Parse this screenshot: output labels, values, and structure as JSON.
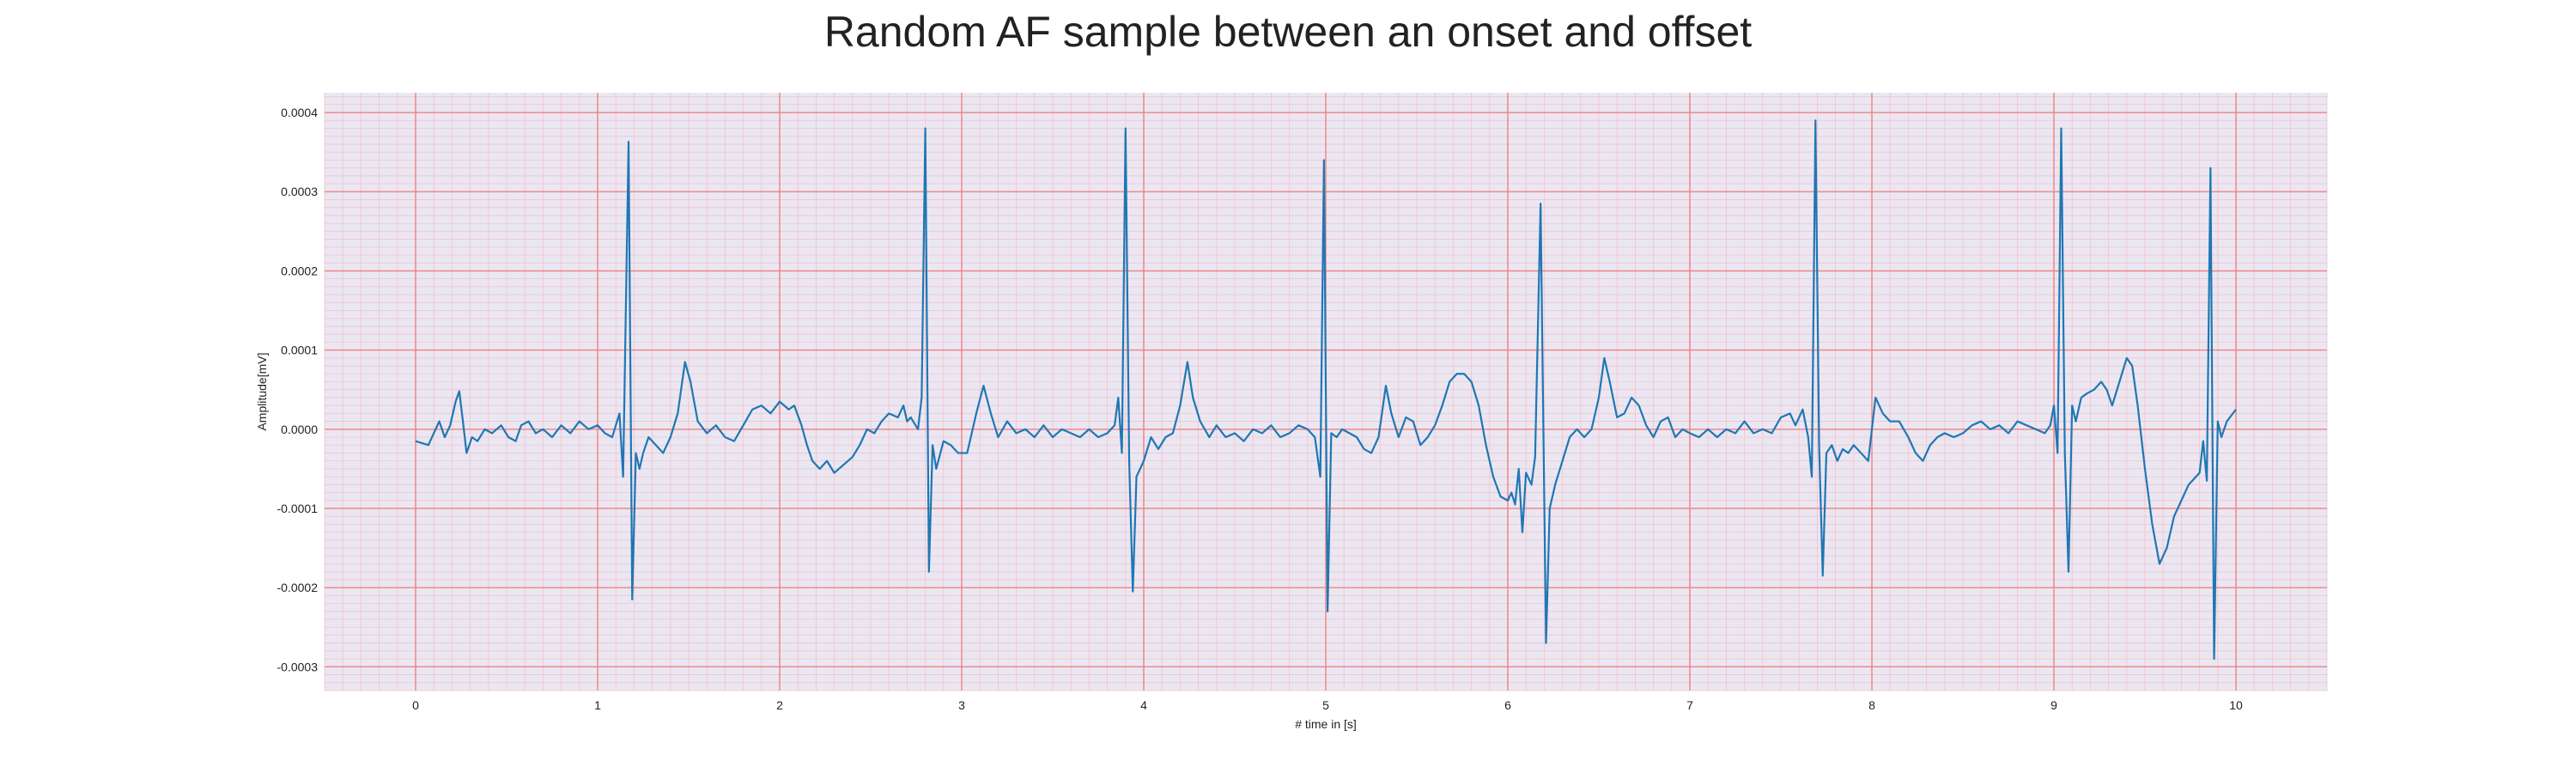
{
  "chart_data": {
    "type": "line",
    "title": "Random AF sample between an onset and offset",
    "xlabel": "# time in [s]",
    "ylabel": "Amplitude[mV]",
    "xlim": [
      -0.5,
      10.5
    ],
    "ylim": [
      -0.00033,
      0.000425
    ],
    "x_ticks": [
      0,
      1,
      2,
      3,
      4,
      5,
      6,
      7,
      8,
      9,
      10
    ],
    "x_tick_labels": [
      "0",
      "1",
      "2",
      "3",
      "4",
      "5",
      "6",
      "7",
      "8",
      "9",
      "10"
    ],
    "y_ticks": [
      0.0004,
      0.0003,
      0.0002,
      0.0001,
      0.0,
      -0.0001,
      -0.0002,
      -0.0003
    ],
    "y_tick_labels": [
      "0.0004",
      "0.0003",
      "0.0002",
      "0.0001",
      "0.0000",
      "-0.0001",
      "-0.0002",
      "-0.0003"
    ],
    "grid": true,
    "legend": "none",
    "colors": {
      "line": "#1f77b4",
      "background": "#eae7f2",
      "major_grid": "#f08080",
      "minor_grid": "#f3c2cb",
      "text": "#222222"
    },
    "series": [
      {
        "values_unit": "1e-5 mV",
        "points": [
          [
            0.0,
            -1.5
          ],
          [
            0.07,
            -2.0
          ],
          [
            0.1,
            -0.5
          ],
          [
            0.13,
            1.0
          ],
          [
            0.16,
            -1.0
          ],
          [
            0.19,
            0.5
          ],
          [
            0.22,
            3.5
          ],
          [
            0.24,
            4.8
          ],
          [
            0.26,
            1.0
          ],
          [
            0.28,
            -3.0
          ],
          [
            0.31,
            -1.0
          ],
          [
            0.34,
            -1.5
          ],
          [
            0.38,
            0.0
          ],
          [
            0.42,
            -0.5
          ],
          [
            0.47,
            0.5
          ],
          [
            0.51,
            -1.0
          ],
          [
            0.55,
            -1.5
          ],
          [
            0.58,
            0.5
          ],
          [
            0.62,
            1.0
          ],
          [
            0.66,
            -0.5
          ],
          [
            0.7,
            0.0
          ],
          [
            0.75,
            -1.0
          ],
          [
            0.8,
            0.5
          ],
          [
            0.85,
            -0.5
          ],
          [
            0.9,
            1.0
          ],
          [
            0.95,
            0.0
          ],
          [
            1.0,
            0.5
          ],
          [
            1.04,
            -0.5
          ],
          [
            1.08,
            -1.0
          ],
          [
            1.12,
            2.0
          ],
          [
            1.14,
            -6.0
          ],
          [
            1.17,
            36.3
          ],
          [
            1.19,
            -21.5
          ],
          [
            1.21,
            -3.0
          ],
          [
            1.23,
            -5.0
          ],
          [
            1.25,
            -3.0
          ],
          [
            1.28,
            -1.0
          ],
          [
            1.32,
            -2.0
          ],
          [
            1.36,
            -3.0
          ],
          [
            1.4,
            -1.0
          ],
          [
            1.44,
            2.0
          ],
          [
            1.48,
            8.5
          ],
          [
            1.51,
            6.0
          ],
          [
            1.55,
            1.0
          ],
          [
            1.6,
            -0.5
          ],
          [
            1.65,
            0.5
          ],
          [
            1.7,
            -1.0
          ],
          [
            1.75,
            -1.5
          ],
          [
            1.8,
            0.5
          ],
          [
            1.85,
            2.5
          ],
          [
            1.9,
            3.0
          ],
          [
            1.95,
            2.0
          ],
          [
            2.0,
            3.5
          ],
          [
            2.05,
            2.5
          ],
          [
            2.08,
            3.0
          ],
          [
            2.12,
            0.5
          ],
          [
            2.15,
            -2.0
          ],
          [
            2.18,
            -4.0
          ],
          [
            2.22,
            -5.0
          ],
          [
            2.26,
            -4.0
          ],
          [
            2.3,
            -5.5
          ],
          [
            2.35,
            -4.5
          ],
          [
            2.4,
            -3.5
          ],
          [
            2.44,
            -2.0
          ],
          [
            2.48,
            0.0
          ],
          [
            2.52,
            -0.5
          ],
          [
            2.56,
            1.0
          ],
          [
            2.6,
            2.0
          ],
          [
            2.65,
            1.5
          ],
          [
            2.68,
            3.0
          ],
          [
            2.7,
            1.0
          ],
          [
            2.72,
            1.5
          ],
          [
            2.76,
            0.0
          ],
          [
            2.78,
            4.0
          ],
          [
            2.8,
            38.0
          ],
          [
            2.82,
            -18.0
          ],
          [
            2.84,
            -2.0
          ],
          [
            2.86,
            -5.0
          ],
          [
            2.9,
            -1.5
          ],
          [
            2.94,
            -2.0
          ],
          [
            2.98,
            -3.0
          ],
          [
            3.03,
            -3.0
          ],
          [
            3.08,
            2.0
          ],
          [
            3.12,
            5.5
          ],
          [
            3.16,
            2.0
          ],
          [
            3.2,
            -1.0
          ],
          [
            3.25,
            1.0
          ],
          [
            3.3,
            -0.5
          ],
          [
            3.35,
            0.0
          ],
          [
            3.4,
            -1.0
          ],
          [
            3.45,
            0.5
          ],
          [
            3.5,
            -1.0
          ],
          [
            3.55,
            0.0
          ],
          [
            3.6,
            -0.5
          ],
          [
            3.65,
            -1.0
          ],
          [
            3.7,
            0.0
          ],
          [
            3.75,
            -1.0
          ],
          [
            3.8,
            -0.5
          ],
          [
            3.84,
            0.5
          ],
          [
            3.86,
            4.0
          ],
          [
            3.88,
            -3.0
          ],
          [
            3.9,
            38.0
          ],
          [
            3.92,
            -4.0
          ],
          [
            3.94,
            -20.5
          ],
          [
            3.96,
            -6.0
          ],
          [
            4.0,
            -4.0
          ],
          [
            4.04,
            -1.0
          ],
          [
            4.08,
            -2.5
          ],
          [
            4.12,
            -1.0
          ],
          [
            4.16,
            -0.5
          ],
          [
            4.2,
            3.0
          ],
          [
            4.24,
            8.5
          ],
          [
            4.27,
            4.0
          ],
          [
            4.31,
            1.0
          ],
          [
            4.36,
            -1.0
          ],
          [
            4.4,
            0.5
          ],
          [
            4.45,
            -1.0
          ],
          [
            4.5,
            -0.5
          ],
          [
            4.55,
            -1.5
          ],
          [
            4.6,
            0.0
          ],
          [
            4.65,
            -0.5
          ],
          [
            4.7,
            0.5
          ],
          [
            4.75,
            -1.0
          ],
          [
            4.8,
            -0.5
          ],
          [
            4.85,
            0.5
          ],
          [
            4.9,
            0.0
          ],
          [
            4.94,
            -1.0
          ],
          [
            4.97,
            -6.0
          ],
          [
            4.99,
            34.0
          ],
          [
            5.01,
            -23.0
          ],
          [
            5.03,
            -0.5
          ],
          [
            5.06,
            -1.0
          ],
          [
            5.09,
            0.0
          ],
          [
            5.13,
            -0.5
          ],
          [
            5.17,
            -1.0
          ],
          [
            5.21,
            -2.5
          ],
          [
            5.25,
            -3.0
          ],
          [
            5.29,
            -1.0
          ],
          [
            5.33,
            5.5
          ],
          [
            5.36,
            2.0
          ],
          [
            5.4,
            -1.0
          ],
          [
            5.44,
            1.5
          ],
          [
            5.48,
            1.0
          ],
          [
            5.52,
            -2.0
          ],
          [
            5.56,
            -1.0
          ],
          [
            5.6,
            0.5
          ],
          [
            5.64,
            3.0
          ],
          [
            5.68,
            6.0
          ],
          [
            5.72,
            7.0
          ],
          [
            5.76,
            7.0
          ],
          [
            5.8,
            6.0
          ],
          [
            5.84,
            3.0
          ],
          [
            5.88,
            -2.0
          ],
          [
            5.92,
            -6.0
          ],
          [
            5.96,
            -8.5
          ],
          [
            6.0,
            -9.0
          ],
          [
            6.02,
            -8.0
          ],
          [
            6.04,
            -9.5
          ],
          [
            6.06,
            -5.0
          ],
          [
            6.08,
            -13.0
          ],
          [
            6.1,
            -5.5
          ],
          [
            6.13,
            -7.0
          ],
          [
            6.15,
            -3.5
          ],
          [
            6.18,
            28.5
          ],
          [
            6.21,
            -27.0
          ],
          [
            6.23,
            -10.0
          ],
          [
            6.26,
            -7.0
          ],
          [
            6.3,
            -4.0
          ],
          [
            6.34,
            -1.0
          ],
          [
            6.38,
            0.0
          ],
          [
            6.42,
            -1.0
          ],
          [
            6.46,
            0.0
          ],
          [
            6.5,
            4.0
          ],
          [
            6.53,
            9.0
          ],
          [
            6.56,
            6.0
          ],
          [
            6.6,
            1.5
          ],
          [
            6.64,
            2.0
          ],
          [
            6.68,
            4.0
          ],
          [
            6.72,
            3.0
          ],
          [
            6.76,
            0.5
          ],
          [
            6.8,
            -1.0
          ],
          [
            6.84,
            1.0
          ],
          [
            6.88,
            1.5
          ],
          [
            6.92,
            -1.0
          ],
          [
            6.96,
            0.0
          ],
          [
            7.0,
            -0.5
          ],
          [
            7.05,
            -1.0
          ],
          [
            7.1,
            0.0
          ],
          [
            7.15,
            -1.0
          ],
          [
            7.2,
            0.0
          ],
          [
            7.25,
            -0.5
          ],
          [
            7.3,
            1.0
          ],
          [
            7.35,
            -0.5
          ],
          [
            7.4,
            0.0
          ],
          [
            7.45,
            -0.5
          ],
          [
            7.5,
            1.5
          ],
          [
            7.55,
            2.0
          ],
          [
            7.58,
            0.5
          ],
          [
            7.62,
            2.5
          ],
          [
            7.65,
            -1.0
          ],
          [
            7.67,
            -6.0
          ],
          [
            7.69,
            39.0
          ],
          [
            7.71,
            -2.0
          ],
          [
            7.73,
            -18.5
          ],
          [
            7.75,
            -3.0
          ],
          [
            7.78,
            -2.0
          ],
          [
            7.81,
            -4.0
          ],
          [
            7.84,
            -2.5
          ],
          [
            7.87,
            -3.0
          ],
          [
            7.9,
            -2.0
          ],
          [
            7.94,
            -3.0
          ],
          [
            7.98,
            -4.0
          ],
          [
            8.02,
            4.0
          ],
          [
            8.06,
            2.0
          ],
          [
            8.1,
            1.0
          ],
          [
            8.15,
            1.0
          ],
          [
            8.2,
            -1.0
          ],
          [
            8.24,
            -3.0
          ],
          [
            8.28,
            -4.0
          ],
          [
            8.32,
            -2.0
          ],
          [
            8.36,
            -1.0
          ],
          [
            8.4,
            -0.5
          ],
          [
            8.45,
            -1.0
          ],
          [
            8.5,
            -0.5
          ],
          [
            8.55,
            0.5
          ],
          [
            8.6,
            1.0
          ],
          [
            8.65,
            0.0
          ],
          [
            8.7,
            0.5
          ],
          [
            8.75,
            -0.5
          ],
          [
            8.8,
            1.0
          ],
          [
            8.85,
            0.5
          ],
          [
            8.9,
            0.0
          ],
          [
            8.95,
            -0.5
          ],
          [
            8.98,
            0.5
          ],
          [
            9.0,
            3.0
          ],
          [
            9.02,
            -3.0
          ],
          [
            9.04,
            38.0
          ],
          [
            9.06,
            -3.0
          ],
          [
            9.08,
            -18.0
          ],
          [
            9.1,
            3.0
          ],
          [
            9.12,
            1.0
          ],
          [
            9.15,
            4.0
          ],
          [
            9.18,
            4.5
          ],
          [
            9.22,
            5.0
          ],
          [
            9.26,
            6.0
          ],
          [
            9.29,
            5.0
          ],
          [
            9.32,
            3.0
          ],
          [
            9.36,
            6.0
          ],
          [
            9.4,
            9.0
          ],
          [
            9.43,
            8.0
          ],
          [
            9.46,
            3.0
          ],
          [
            9.5,
            -5.0
          ],
          [
            9.54,
            -12.0
          ],
          [
            9.58,
            -17.0
          ],
          [
            9.62,
            -15.0
          ],
          [
            9.66,
            -11.0
          ],
          [
            9.7,
            -9.0
          ],
          [
            9.74,
            -7.0
          ],
          [
            9.78,
            -6.0
          ],
          [
            9.8,
            -5.5
          ],
          [
            9.82,
            -1.5
          ],
          [
            9.84,
            -6.5
          ],
          [
            9.86,
            33.0
          ],
          [
            9.88,
            -29.0
          ],
          [
            9.9,
            1.0
          ],
          [
            9.92,
            -1.0
          ],
          [
            9.95,
            1.0
          ],
          [
            10.0,
            2.5
          ]
        ]
      }
    ]
  }
}
